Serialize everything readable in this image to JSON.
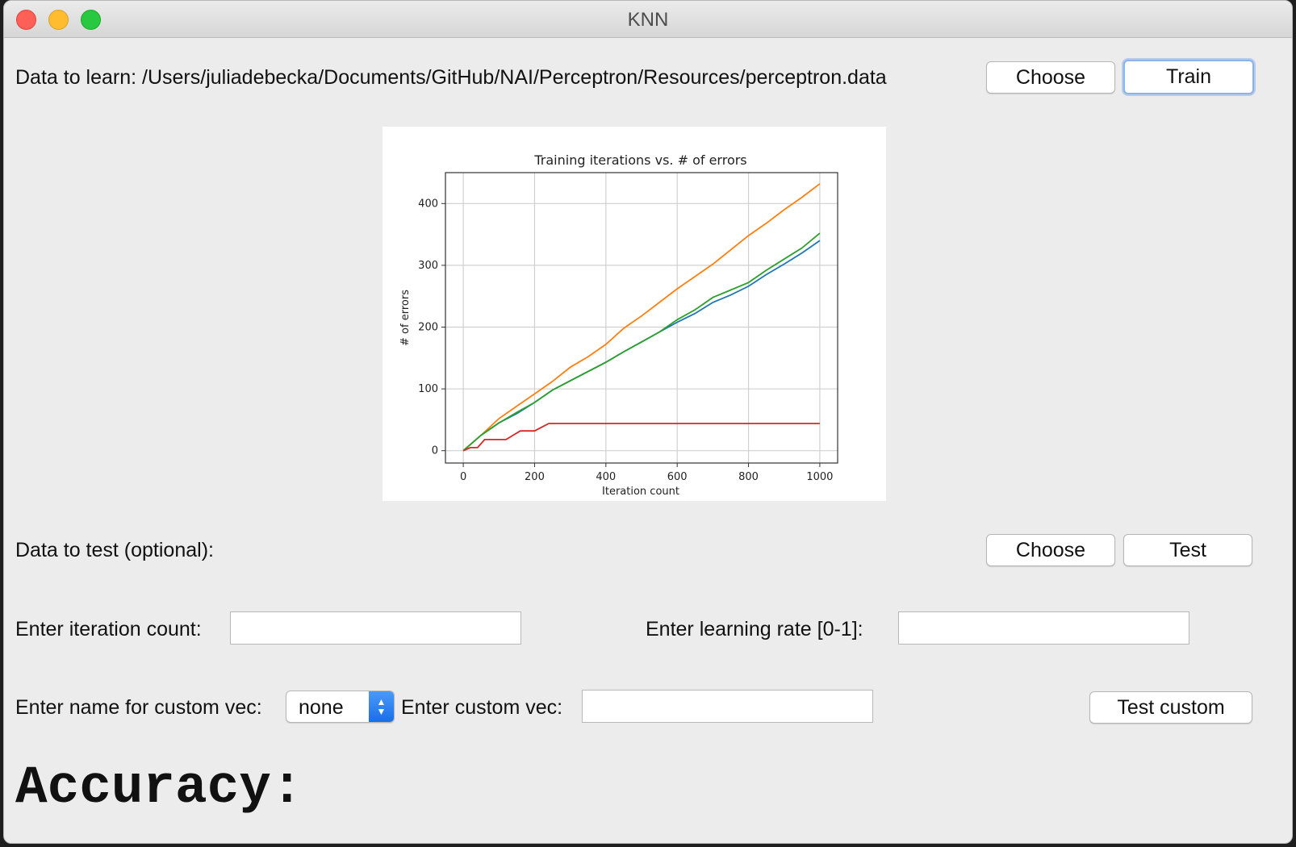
{
  "window": {
    "title": "KNN"
  },
  "learn": {
    "label": "Data to learn: /Users/juliadebecka/Documents/GitHub/NAI/Perceptron/Resources/perceptron.data",
    "choose_label": "Choose",
    "train_label": "Train"
  },
  "test": {
    "label": "Data to test (optional):",
    "choose_label": "Choose",
    "test_label": "Test"
  },
  "params": {
    "iteration_label": "Enter iteration count:",
    "iteration_value": "",
    "rate_label": "Enter learning rate [0-1]:",
    "rate_value": ""
  },
  "custom": {
    "name_label": "Enter name for custom vec:",
    "name_selected": "none",
    "vec_label": "Enter custom vec:",
    "vec_value": "",
    "test_custom_label": "Test custom"
  },
  "result": {
    "accuracy_label": "Accuracy:"
  },
  "chart_data": {
    "type": "line",
    "title": "Training iterations vs. # of errors",
    "xlabel": "Iteration count",
    "ylabel": "# of errors",
    "xlim": [
      -50,
      1050
    ],
    "ylim": [
      -20,
      450
    ],
    "xticks": [
      0,
      200,
      400,
      600,
      800,
      1000
    ],
    "yticks": [
      0,
      100,
      200,
      300,
      400
    ],
    "grid": true,
    "series": [
      {
        "color": "#1f77b4",
        "x": [
          0,
          50,
          100,
          150,
          200,
          250,
          300,
          350,
          400,
          450,
          500,
          550,
          600,
          650,
          700,
          750,
          800,
          850,
          900,
          950,
          1000
        ],
        "y": [
          0,
          25,
          45,
          60,
          78,
          98,
          113,
          128,
          143,
          160,
          176,
          192,
          208,
          222,
          240,
          252,
          266,
          285,
          302,
          320,
          340
        ]
      },
      {
        "color": "#ff7f0e",
        "x": [
          0,
          50,
          100,
          150,
          200,
          250,
          300,
          350,
          400,
          450,
          500,
          550,
          600,
          650,
          700,
          750,
          800,
          850,
          900,
          950,
          1000
        ],
        "y": [
          0,
          25,
          52,
          72,
          92,
          112,
          135,
          152,
          172,
          198,
          218,
          240,
          262,
          282,
          302,
          325,
          348,
          368,
          390,
          410,
          432
        ]
      },
      {
        "color": "#2ca02c",
        "x": [
          0,
          50,
          100,
          150,
          200,
          250,
          300,
          350,
          400,
          450,
          500,
          550,
          600,
          650,
          700,
          750,
          800,
          850,
          900,
          950,
          1000
        ],
        "y": [
          0,
          25,
          45,
          62,
          78,
          98,
          113,
          128,
          143,
          160,
          176,
          192,
          212,
          228,
          248,
          260,
          272,
          292,
          310,
          328,
          352
        ]
      },
      {
        "color": "#d62728",
        "x": [
          0,
          20,
          40,
          60,
          80,
          100,
          120,
          140,
          160,
          180,
          200,
          220,
          240,
          400,
          600,
          800,
          1000
        ],
        "y": [
          0,
          5,
          5,
          18,
          18,
          18,
          18,
          25,
          32,
          32,
          32,
          38,
          44,
          44,
          44,
          44,
          44
        ]
      }
    ]
  }
}
